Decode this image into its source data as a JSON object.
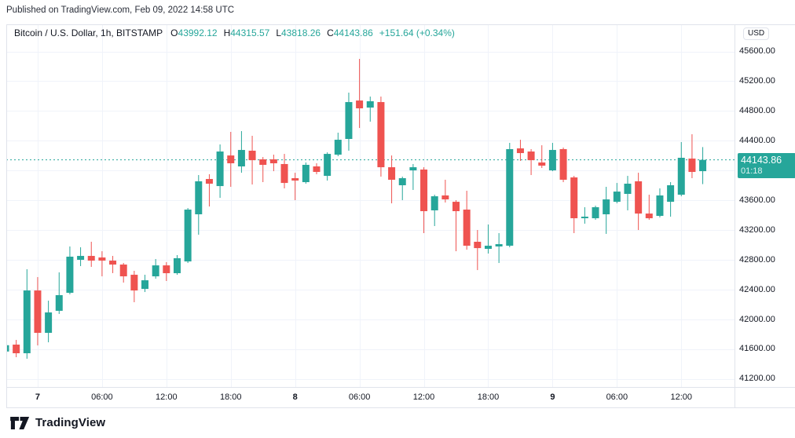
{
  "published": "Published on TradingView.com, Feb 09, 2022 14:58 UTC",
  "legend": {
    "symbol": "Bitcoin / U.S. Dollar, 1h, BITSTAMP",
    "ohlc": [
      {
        "label": "O",
        "value": "43992.12"
      },
      {
        "label": "H",
        "value": "44315.57"
      },
      {
        "label": "L",
        "value": "43818.26"
      },
      {
        "label": "C",
        "value": "44143.86"
      }
    ],
    "change": "+151.64 (+0.34%)"
  },
  "price_axis": {
    "currency": "USD",
    "labels": [
      "45600.00",
      "45200.00",
      "44800.00",
      "44400.00",
      "43600.00",
      "43200.00",
      "42800.00",
      "42400.00",
      "42000.00",
      "41600.00",
      "41200.00"
    ],
    "badge": {
      "price": "44143.86",
      "countdown": "01:18"
    }
  },
  "time_axis": {
    "ticks": [
      {
        "label": "7",
        "i": 3,
        "bold": true
      },
      {
        "label": "06:00",
        "i": 9
      },
      {
        "label": "12:00",
        "i": 15
      },
      {
        "label": "18:00",
        "i": 21
      },
      {
        "label": "8",
        "i": 27,
        "bold": true
      },
      {
        "label": "06:00",
        "i": 33
      },
      {
        "label": "12:00",
        "i": 39
      },
      {
        "label": "18:00",
        "i": 45
      },
      {
        "label": "9",
        "i": 51,
        "bold": true
      },
      {
        "label": "06:00",
        "i": 57
      },
      {
        "label": "12:00",
        "i": 63
      }
    ]
  },
  "brand": {
    "name": "TradingView"
  },
  "colors": {
    "up": "#26a69a",
    "down": "#ef5350",
    "badge": "#26a69a",
    "grid": "#f0f3fa",
    "border": "#e0e3eb",
    "text": "#131722"
  },
  "chart_data": {
    "type": "candlestick",
    "title": "Bitcoin / U.S. Dollar, 1h, BITSTAMP",
    "interval": "1h",
    "exchange": "BITSTAMP",
    "current_bar": {
      "open": 43992.12,
      "high": 44315.57,
      "low": 43818.26,
      "close": 44143.86,
      "change": 151.64,
      "change_pct": 0.34
    },
    "price_line": 44143.86,
    "countdown": "01:18",
    "ylim": [
      41094,
      45964
    ],
    "y_grid": {
      "min": 41200,
      "max": 45600,
      "step": 400
    },
    "x_tick_labels": [
      "7",
      "06:00",
      "12:00",
      "18:00",
      "8",
      "06:00",
      "12:00",
      "18:00",
      "9",
      "06:00",
      "12:00"
    ],
    "candles": [
      [
        41570,
        41690,
        41540,
        41655
      ],
      [
        41663,
        41726,
        41494,
        41547
      ],
      [
        41547,
        42675,
        41473,
        42390
      ],
      [
        42390,
        42570,
        41652,
        41821
      ],
      [
        41821,
        42253,
        41694,
        42095
      ],
      [
        42117,
        42633,
        42075,
        42327
      ],
      [
        42359,
        42981,
        42338,
        42844
      ],
      [
        42802,
        42970,
        42717,
        42854
      ],
      [
        42854,
        43044,
        42707,
        42791
      ],
      [
        42833,
        42917,
        42580,
        42791
      ],
      [
        42791,
        42854,
        42623,
        42738
      ],
      [
        42738,
        42759,
        42496,
        42580
      ],
      [
        42601,
        42654,
        42232,
        42390
      ],
      [
        42411,
        42601,
        42369,
        42527
      ],
      [
        42580,
        42812,
        42548,
        42727
      ],
      [
        42727,
        42770,
        42517,
        42622
      ],
      [
        42622,
        42865,
        42601,
        42823
      ],
      [
        42780,
        43497,
        42759,
        43476
      ],
      [
        43413,
        43940,
        43139,
        43856
      ],
      [
        43887,
        43951,
        43518,
        43824
      ],
      [
        43792,
        44351,
        43634,
        44256
      ],
      [
        44203,
        44520,
        43782,
        44098
      ],
      [
        44056,
        44530,
        43971,
        44277
      ],
      [
        44267,
        44467,
        43813,
        44140
      ],
      [
        44151,
        44182,
        43845,
        44077
      ],
      [
        44151,
        44214,
        43992,
        44098
      ],
      [
        44088,
        44224,
        43761,
        43834
      ],
      [
        43898,
        43971,
        43603,
        43866
      ],
      [
        43845,
        44109,
        43824,
        44077
      ],
      [
        44056,
        44098,
        43951,
        43982
      ],
      [
        43929,
        44245,
        43866,
        44224
      ],
      [
        44214,
        44509,
        44193,
        44414
      ],
      [
        44425,
        45047,
        44267,
        44920
      ],
      [
        44941,
        45500,
        44572,
        44836
      ],
      [
        44846,
        44994,
        44657,
        44931
      ],
      [
        44920,
        44994,
        43919,
        44045
      ],
      [
        44045,
        44203,
        43560,
        43877
      ],
      [
        43803,
        43919,
        43603,
        43898
      ],
      [
        44003,
        44088,
        43740,
        44045
      ],
      [
        44014,
        44045,
        43160,
        43455
      ],
      [
        43466,
        43676,
        43255,
        43655
      ],
      [
        43666,
        43877,
        43571,
        43613
      ],
      [
        43581,
        43603,
        42917,
        43455
      ],
      [
        43476,
        43729,
        42938,
        42991
      ],
      [
        43044,
        43202,
        42664,
        42959
      ],
      [
        42949,
        43276,
        42886,
        42991
      ],
      [
        42981,
        43160,
        42759,
        43012
      ],
      [
        42991,
        44372,
        42970,
        44288
      ],
      [
        44298,
        44414,
        44130,
        44235
      ],
      [
        44256,
        44288,
        43940,
        44140
      ],
      [
        44109,
        44340,
        44035,
        44066
      ],
      [
        44003,
        44372,
        43992,
        44277
      ],
      [
        44288,
        44309,
        43845,
        43877
      ],
      [
        43908,
        43929,
        43160,
        43360
      ],
      [
        43360,
        43508,
        43287,
        43381
      ],
      [
        43360,
        43529,
        43339,
        43508
      ],
      [
        43413,
        43782,
        43150,
        43613
      ],
      [
        43581,
        43834,
        43560,
        43718
      ],
      [
        43687,
        43929,
        43466,
        43824
      ],
      [
        43856,
        43971,
        43202,
        43423
      ],
      [
        43423,
        43676,
        43339,
        43360
      ],
      [
        43392,
        43761,
        43371,
        43666
      ],
      [
        43581,
        43845,
        43381,
        43803
      ],
      [
        43676,
        44383,
        43655,
        44172
      ],
      [
        44161,
        44488,
        43898,
        43982
      ],
      [
        43992.12,
        44315.57,
        43818.26,
        44143.86
      ]
    ]
  }
}
